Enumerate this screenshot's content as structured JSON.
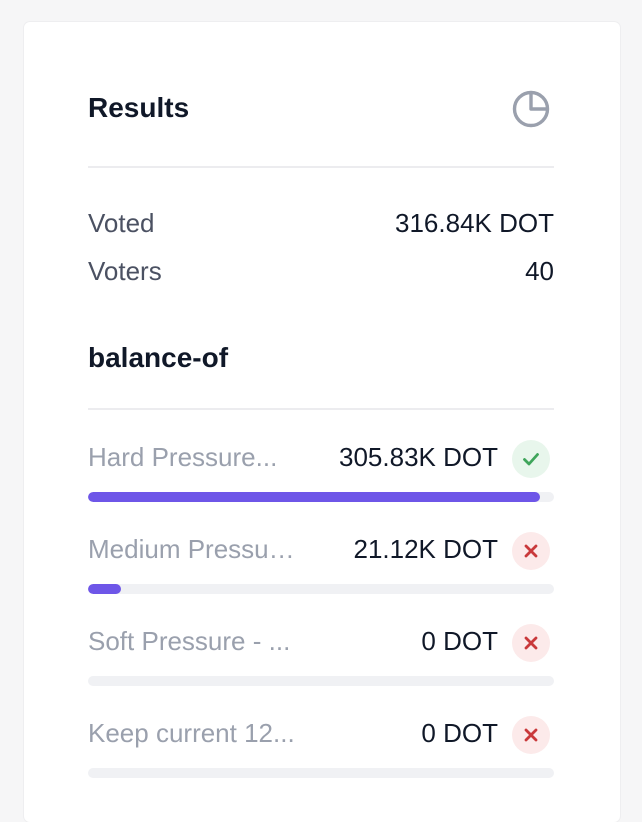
{
  "results": {
    "title": "Results",
    "icon": "pie-chart-icon",
    "voted_label": "Voted",
    "voted_value": "316.84K DOT",
    "voters_label": "Voters",
    "voters_value": "40"
  },
  "section": {
    "title": "balance-of"
  },
  "options": [
    {
      "name": "Hard Pressure...",
      "amount": "305.83K DOT",
      "status": "approved",
      "status_icon": "check-icon",
      "fill_percent": 97
    },
    {
      "name": "Medium Pressure...",
      "amount": "21.12K DOT",
      "status": "rejected",
      "status_icon": "close-icon",
      "fill_percent": 7
    },
    {
      "name": "Soft Pressure - ...",
      "amount": "0 DOT",
      "status": "rejected",
      "status_icon": "close-icon",
      "fill_percent": 0
    },
    {
      "name": "Keep current 12...",
      "amount": "0 DOT",
      "status": "rejected",
      "status_icon": "close-icon",
      "fill_percent": 0
    }
  ],
  "colors": {
    "bar_fill": "#6e56e8",
    "approved": "#3fa55b",
    "rejected": "#c9393b"
  }
}
